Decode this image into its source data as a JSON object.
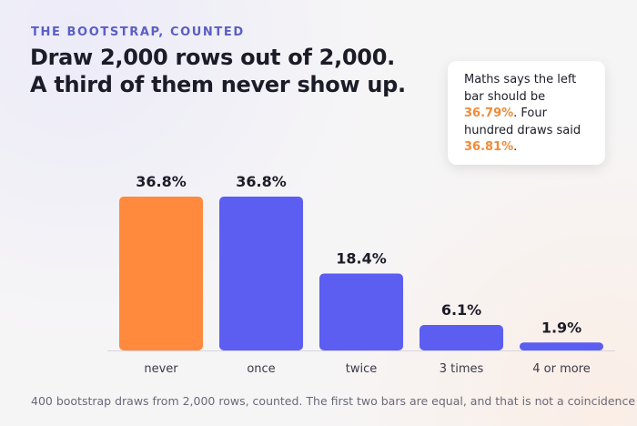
{
  "chart_data": {
    "type": "bar",
    "eyebrow": "THE BOOTSTRAP, COUNTED",
    "title": [
      "Draw 2,000 rows out of 2,000.",
      "A third of them never show up."
    ],
    "annotation": [
      "Maths says the left bar should be ",
      "36.79%",
      ". Four hundred draws said ",
      "36.81%",
      "."
    ],
    "categories": [
      "never",
      "once",
      "twice",
      "3 times",
      "4 or more"
    ],
    "values": [
      36.8,
      36.8,
      18.4,
      6.1,
      1.9
    ],
    "value_labels": [
      "36.8%",
      "36.8%",
      "18.4%",
      "6.1%",
      "1.9%"
    ],
    "colors": [
      "#ff8a3d",
      "#5b5ef0",
      "#5b5ef0",
      "#5b5ef0",
      "#5b5ef0"
    ],
    "footnote": "400 bootstrap draws from 2,000 rows, counted. The first two bars are equal, and that is not a coincidence"
  }
}
